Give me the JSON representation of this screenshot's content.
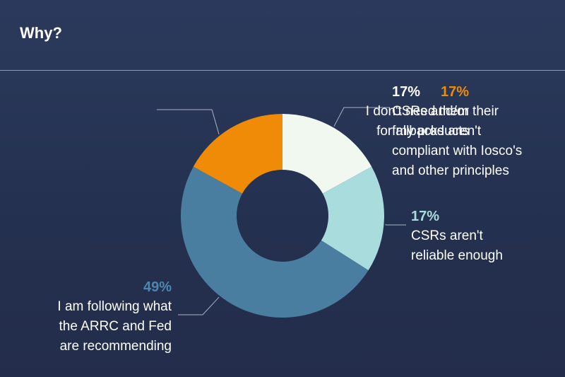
{
  "title": "Why?",
  "chart_data": {
    "type": "pie",
    "donut": true,
    "colors": {
      "background": "#26314f",
      "rule": "#c8903a",
      "leader": "#a9b3c4",
      "hole": "#26314f"
    },
    "slices": [
      {
        "label": "I don't need them\nfor my products",
        "value": 17,
        "percent_label": "17%",
        "color": "#ef8b06",
        "label_color": "#ef8b06"
      },
      {
        "label": "CSRs and/or their\nfallbacks aren't\ncompliant with Iosco's\nand other principles",
        "value": 17,
        "percent_label": "17%",
        "color": "#f1f8f0",
        "label_color": "#ffffff"
      },
      {
        "label": "CSRs aren't\nreliable enough",
        "value": 17,
        "percent_label": "17%",
        "color": "#a9dcdc",
        "label_color": "#a9dcdc"
      },
      {
        "label": "I am following what\nthe ARRC and Fed\nare recommending",
        "value": 49,
        "percent_label": "49%",
        "color": "#4a7ea0",
        "label_color": "#4d86b0"
      }
    ]
  }
}
